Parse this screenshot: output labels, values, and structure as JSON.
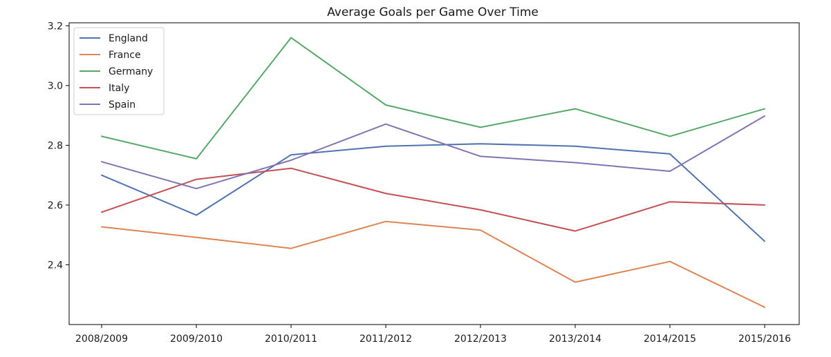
{
  "chart_data": {
    "type": "line",
    "title": "Average Goals per Game Over Time",
    "xlabel": "",
    "ylabel": "",
    "categories": [
      "2008/2009",
      "2009/2010",
      "2010/2011",
      "2011/2012",
      "2012/2013",
      "2013/2014",
      "2014/2015",
      "2015/2016"
    ],
    "ylim": [
      2.2,
      3.21
    ],
    "yticks": [
      2.4,
      2.6,
      2.8,
      3.0,
      3.2
    ],
    "ytick_labels": [
      "2.4",
      "2.6",
      "2.8",
      "3.0",
      "3.2"
    ],
    "grid": false,
    "legend_position": "top-left",
    "series": [
      {
        "name": "England",
        "color": "#4c72b0",
        "values": [
          2.7,
          2.566,
          2.768,
          2.797,
          2.805,
          2.797,
          2.771,
          2.479
        ]
      },
      {
        "name": "France",
        "color": "#dd8452",
        "values": [
          2.527,
          2.492,
          2.455,
          2.545,
          2.516,
          2.342,
          2.411,
          2.258
        ]
      },
      {
        "name": "Germany",
        "color": "#55a868",
        "values": [
          2.83,
          2.755,
          3.16,
          2.935,
          2.86,
          2.922,
          2.83,
          2.922
        ]
      },
      {
        "name": "Italy",
        "color": "#c44e52",
        "values": [
          2.576,
          2.686,
          2.723,
          2.639,
          2.584,
          2.513,
          2.611,
          2.6
        ]
      },
      {
        "name": "Spain",
        "color": "#8172b3",
        "values": [
          2.745,
          2.655,
          2.75,
          2.871,
          2.763,
          2.742,
          2.713,
          2.898
        ]
      }
    ]
  }
}
